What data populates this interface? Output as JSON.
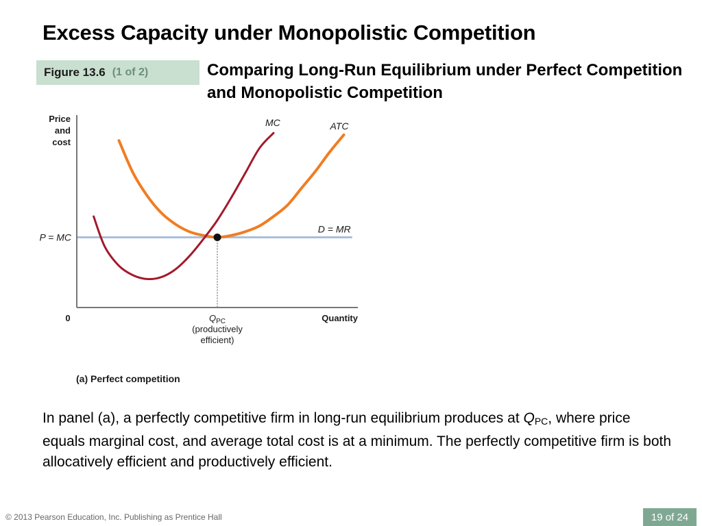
{
  "slide": {
    "title": "Excess Capacity under Monopolistic Competition",
    "figure_label": "Figure 13.6",
    "figure_part": "(1 of 2)",
    "figure_caption": "Comparing Long-Run Equilibrium under Perfect Competition and Monopolistic Competition",
    "panel_label": "(a) Perfect competition",
    "body_before": "In panel (a), a perfectly competitive firm in long-run equilibrium produces at ",
    "body_q": "Q",
    "body_sub": "PC",
    "body_after": ", where price equals marginal cost, and average total cost is at a minimum. The perfectly competitive firm is both allocatively efficient and productively efficient.",
    "copyright": "© 2013 Pearson Education, Inc. Publishing as Prentice Hall",
    "page_indicator": "19 of 24"
  },
  "colors": {
    "mc": "#a3192b",
    "atc": "#f07d22",
    "demand": "#a9bfdc",
    "axis": "#777777",
    "figure_badge": "#c9dfcf",
    "page_badge": "#7fa893"
  },
  "chart_data": {
    "type": "line",
    "title": "(a) Perfect competition",
    "ylabel": "Price and cost",
    "xlabel": "Quantity",
    "origin_label": "0",
    "xlim": [
      0,
      10
    ],
    "ylim": [
      0,
      10
    ],
    "series": [
      {
        "name": "MC",
        "x": [
          0.6,
          1.0,
          1.5,
          2.0,
          2.5,
          3.0,
          3.5,
          4.0,
          4.5,
          5.0,
          5.5,
          6.0,
          6.5,
          7.0
        ],
        "y": [
          4.8,
          3.2,
          2.2,
          1.7,
          1.5,
          1.6,
          2.0,
          2.7,
          3.6,
          4.6,
          5.8,
          7.1,
          8.4,
          9.2
        ]
      },
      {
        "name": "ATC",
        "x": [
          1.5,
          2.0,
          2.5,
          3.0,
          3.5,
          4.0,
          4.5,
          5.0,
          5.5,
          6.0,
          6.5,
          7.0,
          7.5,
          8.0,
          8.5,
          9.0,
          9.5
        ],
        "y": [
          8.8,
          7.1,
          5.9,
          5.0,
          4.4,
          4.0,
          3.8,
          3.7,
          3.8,
          4.0,
          4.3,
          4.8,
          5.4,
          6.3,
          7.2,
          8.2,
          9.1
        ]
      },
      {
        "name": "D = MR",
        "x": [
          0,
          9.8
        ],
        "y": [
          3.7,
          3.7
        ]
      }
    ],
    "equilibrium": {
      "x": 5.0,
      "y": 3.7
    },
    "annotations": {
      "price_label": "P = MC",
      "mc_label": "MC",
      "atc_label": "ATC",
      "demand_label": "D = MR",
      "q_label": "Q",
      "q_sub": "PC",
      "q_note_1": "(productively",
      "q_note_2": "efficient)",
      "ylabel_lines": [
        "Price",
        "and",
        "cost"
      ]
    }
  }
}
